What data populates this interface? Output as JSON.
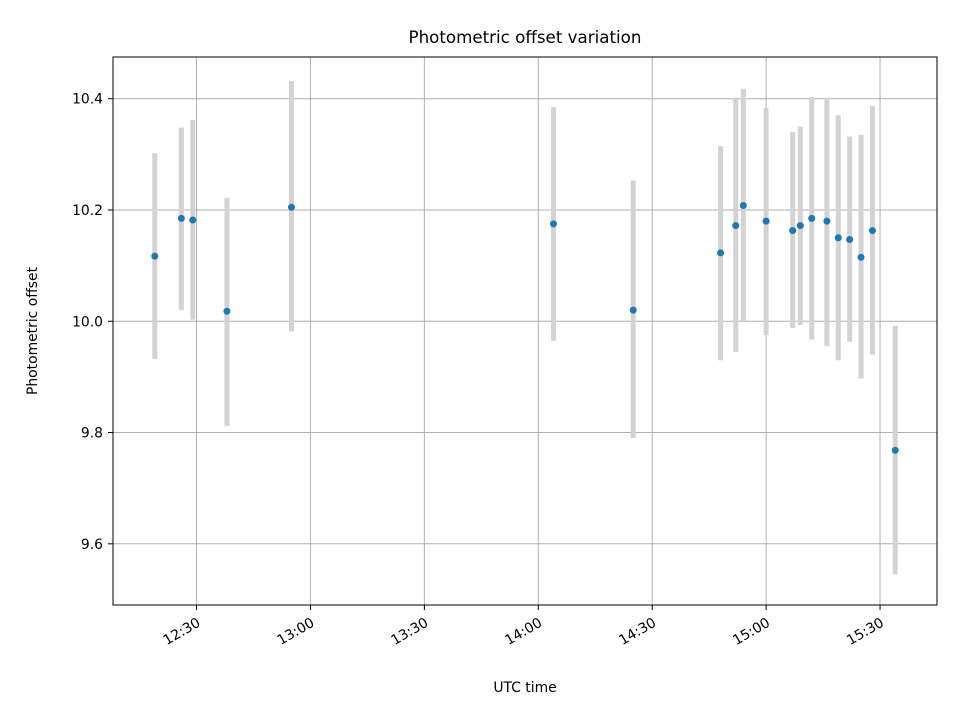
{
  "chart_data": {
    "type": "scatter",
    "title": "Photometric offset variation",
    "xlabel": "UTC time",
    "ylabel": "Photometric offset",
    "x_ticks": [
      "12:30",
      "13:00",
      "13:30",
      "14:00",
      "14:30",
      "15:00",
      "15:30"
    ],
    "y_ticks": [
      "9.6",
      "9.8",
      "10.0",
      "10.2",
      "10.4"
    ],
    "xlim": [
      "12:08",
      "15:45"
    ],
    "ylim": [
      9.49,
      10.475
    ],
    "grid": true,
    "colors": {
      "point": "#1f77b4",
      "errorbar": "#d3d3d3",
      "grid": "#b0b0b0"
    },
    "points": [
      {
        "x": "12:19",
        "y": 10.117,
        "low": 9.932,
        "high": 10.302
      },
      {
        "x": "12:26",
        "y": 10.185,
        "low": 10.02,
        "high": 10.348
      },
      {
        "x": "12:29",
        "y": 10.182,
        "low": 10.003,
        "high": 10.362
      },
      {
        "x": "12:38",
        "y": 10.018,
        "low": 9.812,
        "high": 10.222
      },
      {
        "x": "12:55",
        "y": 10.205,
        "low": 9.982,
        "high": 10.432
      },
      {
        "x": "14:04",
        "y": 10.175,
        "low": 9.965,
        "high": 10.385
      },
      {
        "x": "14:25",
        "y": 10.02,
        "low": 9.79,
        "high": 10.253
      },
      {
        "x": "14:48",
        "y": 10.123,
        "low": 9.93,
        "high": 10.315
      },
      {
        "x": "14:52",
        "y": 10.172,
        "low": 9.945,
        "high": 10.402
      },
      {
        "x": "14:54",
        "y": 10.208,
        "low": 10.0,
        "high": 10.418
      },
      {
        "x": "15:00",
        "y": 10.18,
        "low": 9.975,
        "high": 10.383
      },
      {
        "x": "15:07",
        "y": 10.163,
        "low": 9.988,
        "high": 10.34
      },
      {
        "x": "15:09",
        "y": 10.172,
        "low": 9.993,
        "high": 10.35
      },
      {
        "x": "15:12",
        "y": 10.185,
        "low": 9.967,
        "high": 10.403
      },
      {
        "x": "15:16",
        "y": 10.18,
        "low": 9.955,
        "high": 10.402
      },
      {
        "x": "15:19",
        "y": 10.15,
        "low": 9.93,
        "high": 10.37
      },
      {
        "x": "15:22",
        "y": 10.147,
        "low": 9.963,
        "high": 10.332
      },
      {
        "x": "15:25",
        "y": 10.115,
        "low": 9.897,
        "high": 10.335
      },
      {
        "x": "15:28",
        "y": 10.163,
        "low": 9.94,
        "high": 10.387
      },
      {
        "x": "15:34",
        "y": 9.768,
        "low": 9.545,
        "high": 9.992
      }
    ]
  }
}
